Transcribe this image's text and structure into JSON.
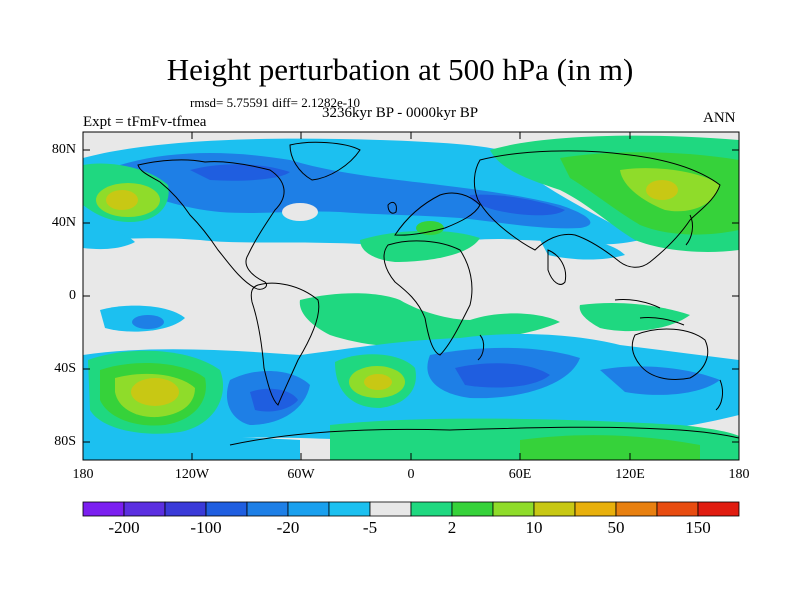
{
  "title": "Height perturbation at 500 hPa (in m)",
  "stats": "rmsd= 5.75591 diff= 2.1282e-10",
  "period": "3236kyr BP - 0000kyr BP",
  "experiment": "Expt = tFmFv-tfmea",
  "season": "ANN",
  "axes": {
    "lat_ticks": [
      "80N",
      "40N",
      "0",
      "40S",
      "80S"
    ],
    "lon_ticks": [
      "180",
      "120W",
      "60W",
      "0",
      "60E",
      "120E",
      "180"
    ]
  },
  "colorbar": {
    "colors": [
      "#7b1ff0",
      "#5b2fe0",
      "#3a3ad8",
      "#1f5ee0",
      "#1e7fe6",
      "#1aa0ee",
      "#1cc0f0",
      "#e8e8e8",
      "#1fd880",
      "#36d23a",
      "#8fdc2a",
      "#c8c814",
      "#e8b00c",
      "#e88010",
      "#e84c10",
      "#e01c10"
    ],
    "labels": [
      "-200",
      "-100",
      "-20",
      "-5",
      "2",
      "10",
      "50",
      "150"
    ]
  },
  "palette": {
    "ocean_neutral": "#e8e8e8",
    "light_blue": "#1cc0f0",
    "blue": "#1e7fe6",
    "dark_blue": "#1f5ee0",
    "green": "#1fd880",
    "lime": "#36d23a",
    "yellow_green": "#8fdc2a",
    "olive_yellow": "#c8c814",
    "coastline": "#000000"
  }
}
